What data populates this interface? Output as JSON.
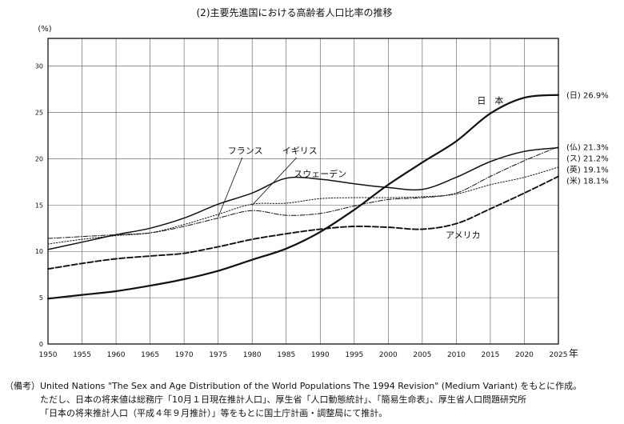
{
  "chart_data": {
    "type": "line",
    "title": "(2)主要先進国における高齢者人口比率の推移",
    "ylabel": "(%)",
    "xlabel": "年",
    "xlim": [
      1950,
      2025
    ],
    "ylim": [
      0,
      33
    ],
    "yticks": [
      0,
      5,
      10,
      15,
      20,
      25,
      30
    ],
    "xticks": [
      1950,
      1955,
      1960,
      1965,
      1970,
      1975,
      1980,
      1985,
      1990,
      1995,
      2000,
      2005,
      2010,
      2015,
      2020,
      2025
    ],
    "grid": true,
    "series": [
      {
        "name": "日本",
        "end_label": "(日) 26.9%",
        "style": "solid-heavy",
        "x": [
          1950,
          1955,
          1960,
          1965,
          1970,
          1975,
          1980,
          1985,
          1990,
          1995,
          2000,
          2005,
          2010,
          2015,
          2020,
          2025
        ],
        "y": [
          4.9,
          5.3,
          5.7,
          6.3,
          7.0,
          7.9,
          9.1,
          10.3,
          12.1,
          14.5,
          17.2,
          19.6,
          21.9,
          24.9,
          26.6,
          26.9
        ]
      },
      {
        "name": "フランス",
        "end_label": "(仏) 21.3%",
        "style": "dashdot",
        "x": [
          1950,
          1955,
          1960,
          1965,
          1970,
          1975,
          1980,
          1985,
          1990,
          1995,
          2000,
          2005,
          2010,
          2015,
          2020,
          2025
        ],
        "y": [
          11.4,
          11.6,
          11.8,
          12.0,
          12.7,
          13.6,
          14.4,
          13.9,
          14.1,
          14.9,
          15.6,
          15.8,
          16.3,
          18.1,
          19.8,
          21.3
        ]
      },
      {
        "name": "スウェーデン",
        "end_label": "(ス) 21.2%",
        "style": "solid",
        "x": [
          1950,
          1955,
          1960,
          1965,
          1970,
          1975,
          1980,
          1985,
          1990,
          1995,
          2000,
          2005,
          2010,
          2015,
          2020,
          2025
        ],
        "y": [
          10.2,
          11.0,
          11.8,
          12.5,
          13.6,
          15.1,
          16.3,
          17.9,
          17.8,
          17.3,
          16.9,
          16.7,
          18.0,
          19.7,
          20.8,
          21.2
        ]
      },
      {
        "name": "イギリス",
        "end_label": "(英) 19.1%",
        "style": "dotted",
        "x": [
          1950,
          1955,
          1960,
          1965,
          1970,
          1975,
          1980,
          1985,
          1990,
          1995,
          2000,
          2005,
          2010,
          2015,
          2020,
          2025
        ],
        "y": [
          10.8,
          11.3,
          11.7,
          12.0,
          12.9,
          14.0,
          15.1,
          15.2,
          15.7,
          15.8,
          15.8,
          15.9,
          16.2,
          17.2,
          18.0,
          19.1
        ]
      },
      {
        "name": "アメリカ",
        "end_label": "(米) 18.1%",
        "style": "dashed-heavy",
        "x": [
          1950,
          1955,
          1960,
          1965,
          1970,
          1975,
          1980,
          1985,
          1990,
          1995,
          2000,
          2005,
          2010,
          2015,
          2020,
          2025
        ],
        "y": [
          8.1,
          8.7,
          9.2,
          9.5,
          9.8,
          10.5,
          11.3,
          11.9,
          12.4,
          12.7,
          12.6,
          12.4,
          13.0,
          14.6,
          16.3,
          18.1
        ]
      }
    ],
    "annotations": [
      {
        "text": "日　本",
        "x": 2015,
        "y": 26.3
      },
      {
        "text": "スウェーデン",
        "x": 1990,
        "y": 18.4
      },
      {
        "text": "アメリカ",
        "x": 2011,
        "y": 11.8
      },
      {
        "text": "フランス",
        "x": 1979,
        "y": 20.9
      },
      {
        "text": "イギリス",
        "x": 1987,
        "y": 20.9
      }
    ]
  },
  "notes": {
    "label": "（備考）",
    "line1": "United Nations \"The Sex and Age Distribution of the World Populations The 1994 Revision\" (Medium Variant) をもとに作成。",
    "line2": "ただし、日本の将来値は総務庁「10月１日現在推計人口」、厚生省「人口動態統計」、「簡易生命表」、厚生省人口問題研究所",
    "line3": "「日本の将来推計人口（平成４年９月推計）」等をもとに国土庁計画・調整局にて推計。"
  }
}
